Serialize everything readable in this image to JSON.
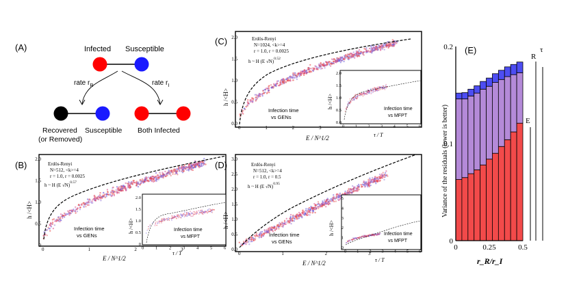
{
  "panel_a": {
    "label": "(A)",
    "infected": "Infected",
    "susceptible": "Susceptible",
    "rate_r": "rate r",
    "rate_r_sub": "R",
    "rate_i": "rate r",
    "rate_i_sub": "I",
    "recovered": "Recovered",
    "removed": "(or Removed)",
    "susceptible2": "Susceptible",
    "both_infected": "Both Infected",
    "colors": {
      "infected": "#ff0000",
      "susceptible": "#1a1aff",
      "recovered": "#000000"
    }
  },
  "panel_b": {
    "label": "(B)",
    "info1": "Erdös-Renyi",
    "info2": "N=512, <k>=4",
    "info3": "r = 1.0, r = 0.0025",
    "fit": "h ~ H (E √N)",
    "fit_exp": "0.57",
    "ylabel": "h /<H>",
    "xlabel": "E / N^1/2",
    "caption1": "Infection time",
    "caption2": "vs GENs",
    "x_ticks": [
      "0",
      "1",
      "2",
      "3"
    ],
    "y_ticks": [
      "0",
      "0.5",
      "1.0",
      "1.5",
      "2.0"
    ],
    "inset": {
      "ylabel": "h /<H>",
      "xlabel": "τ / T",
      "caption1": "Infection time",
      "caption2": "vs MFPT",
      "x_ticks": [
        "0",
        "1",
        "2",
        "3",
        "4",
        "5",
        "6"
      ],
      "y_ticks": [
        "0",
        "0.5",
        "1.0",
        "1.5",
        "2.0"
      ]
    }
  },
  "panel_c": {
    "label": "(C)",
    "info1": "Erdös-Renyi",
    "info2": "N=1024, <k>=4",
    "info3": "r = 1.0, r = 0.0025",
    "fit": "h ~ H (E √N)",
    "fit_exp": "0.52",
    "ylabel": "h /<H>",
    "xlabel": "E / N^1/2",
    "caption1": "Infection time",
    "caption2": "vs GENs",
    "x_ticks": [
      "0",
      "1",
      "2",
      "3"
    ],
    "y_ticks": [
      "0.0",
      "0.5",
      "1.0",
      "1.5",
      "2.0"
    ],
    "inset": {
      "ylabel": "h /<H>",
      "xlabel": "τ / T",
      "caption1": "Infection time",
      "caption2": "vs MFPT",
      "x_ticks": [
        "0",
        "1",
        "2",
        "3",
        "4",
        "5",
        "6"
      ],
      "y_ticks": [
        "0.0",
        "0.5",
        "1.0",
        "1.5",
        "2.0"
      ]
    }
  },
  "panel_d": {
    "label": "(D)",
    "info1": "Erdös-Renyi",
    "info2": "N=512, <k>=4",
    "info3": "r = 1.0, r = 0.5",
    "fit": "h ~ H (E √N)",
    "fit_exp": "0.95",
    "ylabel": "h /<H>",
    "xlabel": "E / N^1/2",
    "caption1": "Infection time",
    "caption2": "vs GENs",
    "x_ticks": [
      "0",
      "1",
      "2",
      "3"
    ],
    "y_ticks": [
      "0.0",
      "0.5",
      "1.0",
      "1.5",
      "2.0",
      "2.5",
      "3.0"
    ],
    "inset": {
      "ylabel": "h /<H>",
      "xlabel": "τ / T",
      "caption1": "Infection time",
      "caption2": "vs MFPT",
      "x_ticks": [
        "0",
        "1",
        "2",
        "3",
        "4",
        "5",
        "6"
      ],
      "y_ticks": [
        "0",
        "1",
        "2",
        "3",
        "4",
        "5"
      ]
    }
  },
  "chart_data": [
    {
      "panel": "E",
      "type": "bar",
      "stacked": true,
      "ylabel": "Variance of the residuals (lower is better)",
      "xlabel": "r_R/r_I",
      "x_ticks": [
        "0",
        "0.25",
        "0.5"
      ],
      "y_ticks": [
        "0",
        "0.1",
        "0.2"
      ],
      "ylim": [
        0,
        0.2
      ],
      "categories": [
        0.0,
        0.05,
        0.1,
        0.15,
        0.2,
        0.25,
        0.3,
        0.35,
        0.4,
        0.45,
        0.5
      ],
      "series": [
        {
          "name": "E",
          "color": "#f24a4a",
          "values": [
            0.063,
            0.065,
            0.069,
            0.073,
            0.078,
            0.084,
            0.09,
            0.097,
            0.104,
            0.112,
            0.121
          ]
        },
        {
          "name": "R",
          "color": "#b48ad8",
          "values": [
            0.083,
            0.081,
            0.08,
            0.079,
            0.078,
            0.075,
            0.073,
            0.069,
            0.065,
            0.059,
            0.052
          ]
        },
        {
          "name": "τ",
          "color": "#4d4df2",
          "values": [
            0.006,
            0.0065,
            0.007,
            0.0075,
            0.008,
            0.0085,
            0.009,
            0.0095,
            0.01,
            0.0105,
            0.011
          ]
        }
      ],
      "legend": [
        "E",
        "R",
        "τ"
      ]
    }
  ]
}
